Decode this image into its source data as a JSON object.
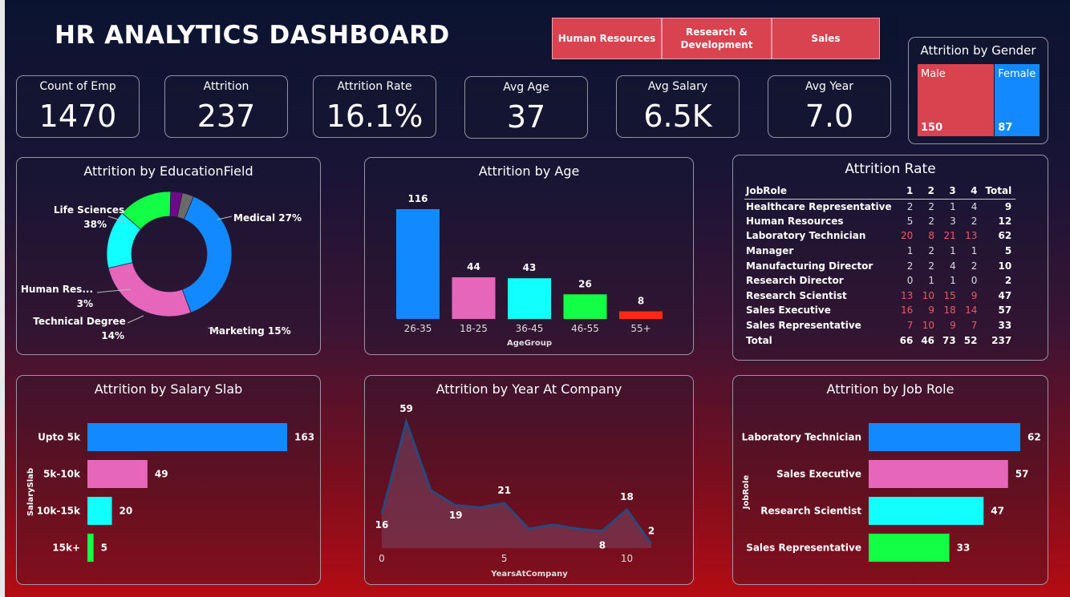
{
  "title": "HR ANALYTICS DASHBOARD",
  "department_slicer": [
    "Human Resources",
    "Research & Development",
    "Sales"
  ],
  "kpis": [
    {
      "label": "Count of Emp",
      "value": "1470"
    },
    {
      "label": "Attrition",
      "value": "237"
    },
    {
      "label": "Attrition Rate",
      "value": "16.1%"
    },
    {
      "label": "Avg Age",
      "value": "37"
    },
    {
      "label": "Avg Salary",
      "value": "6.5K"
    },
    {
      "label": "Avg Year",
      "value": "7.0"
    }
  ],
  "colors": {
    "blue": "#1289ff",
    "pink": "#e566bb",
    "cyan": "#12ffff",
    "green": "#12ff45",
    "red": "#ff2a12",
    "purple": "#6c0a8a",
    "gray": "#6a6a6a",
    "male": "#d9434f",
    "female": "#1289ff"
  },
  "chart_data": [
    {
      "type": "treemap",
      "title": "Attrition by Gender",
      "categories": [
        "Male",
        "Female"
      ],
      "values": [
        150,
        87
      ]
    },
    {
      "type": "pie",
      "title": "Attrition by EducationField",
      "categories": [
        "Life Sciences",
        "Medical",
        "Marketing",
        "Technical Degree",
        "Other",
        "Human Res..."
      ],
      "values": [
        38,
        27,
        15,
        14,
        3,
        3
      ],
      "labels": [
        "Life Sciences 38%",
        "Medical 27%",
        "Marketing 15%",
        "Technical Degree 14%",
        "",
        "Human Res... 3%"
      ]
    },
    {
      "type": "bar",
      "title": "Attrition by Age",
      "xlabel": "AgeGroup",
      "categories": [
        "26-35",
        "18-25",
        "36-45",
        "46-55",
        "55+"
      ],
      "values": [
        116,
        44,
        43,
        26,
        8
      ]
    },
    {
      "type": "table",
      "title": "Attrition Rate",
      "row_header": "JobRole",
      "columns": [
        "1",
        "2",
        "3",
        "4",
        "Total"
      ],
      "rows": [
        {
          "name": "Healthcare Representative",
          "values": [
            2,
            2,
            1,
            4,
            9
          ]
        },
        {
          "name": "Human Resources",
          "values": [
            5,
            2,
            3,
            2,
            12
          ]
        },
        {
          "name": "Laboratory Technician",
          "values": [
            20,
            8,
            21,
            13,
            62
          ]
        },
        {
          "name": "Manager",
          "values": [
            1,
            2,
            1,
            1,
            5
          ]
        },
        {
          "name": "Manufacturing Director",
          "values": [
            2,
            2,
            4,
            2,
            10
          ]
        },
        {
          "name": "Research Director",
          "values": [
            0,
            1,
            1,
            0,
            2
          ]
        },
        {
          "name": "Research Scientist",
          "values": [
            13,
            10,
            15,
            9,
            47
          ]
        },
        {
          "name": "Sales Executive",
          "values": [
            16,
            9,
            18,
            14,
            57
          ]
        },
        {
          "name": "Sales Representative",
          "values": [
            7,
            10,
            9,
            7,
            33
          ]
        }
      ],
      "total": {
        "name": "Total",
        "values": [
          66,
          46,
          73,
          52,
          237
        ]
      }
    },
    {
      "type": "bar",
      "orientation": "horizontal",
      "title": "Attrition by Salary Slab",
      "ylabel": "SalarySlab",
      "categories": [
        "Upto 5k",
        "5k-10k",
        "10k-15k",
        "15k+"
      ],
      "values": [
        163,
        49,
        20,
        5
      ]
    },
    {
      "type": "area",
      "title": "Attrition by Year At Company",
      "xlabel": "YearsAtCompany",
      "x": [
        0,
        1,
        2,
        3,
        4,
        5,
        6,
        7,
        8,
        9,
        10,
        11
      ],
      "y": [
        16,
        59,
        27,
        20,
        19,
        21,
        9,
        11,
        9,
        8,
        18,
        2
      ],
      "labeled_points": [
        0,
        1,
        4,
        5,
        9,
        10,
        11
      ],
      "xticks": [
        0,
        5,
        10
      ],
      "xlim": [
        0,
        11
      ],
      "ylim": [
        0,
        59
      ]
    },
    {
      "type": "bar",
      "orientation": "horizontal",
      "title": "Attrition by Job Role",
      "ylabel": "JobRole",
      "categories": [
        "Laboratory Technician",
        "Sales Executive",
        "Research Scientist",
        "Sales Representative"
      ],
      "values": [
        62,
        57,
        47,
        33
      ]
    }
  ]
}
